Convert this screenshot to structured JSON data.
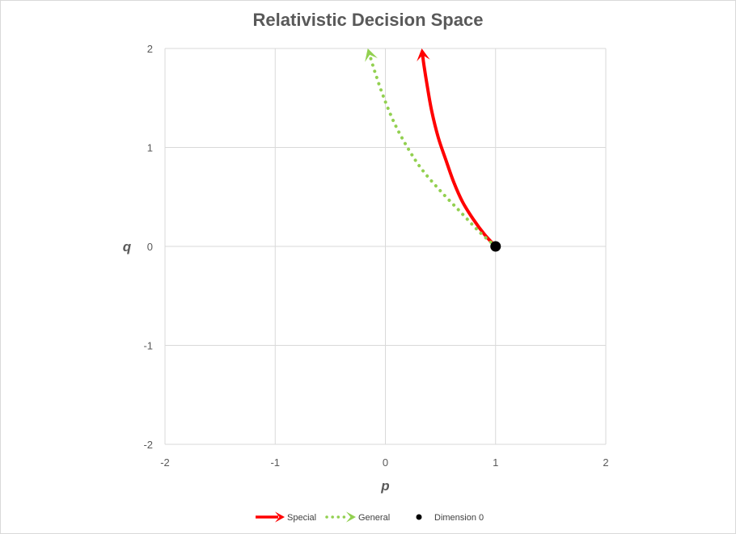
{
  "chart_data": {
    "type": "line",
    "title": "Relativistic Decision Space",
    "xlabel": "p",
    "ylabel": "q",
    "xlim": [
      -2,
      2
    ],
    "ylim": [
      -2,
      2
    ],
    "xticks": [
      -2,
      -1,
      0,
      1,
      2
    ],
    "yticks": [
      -2,
      -1,
      0,
      1,
      2
    ],
    "x_tick_labels": [
      "-2",
      "-1",
      "0",
      "1",
      "2"
    ],
    "y_tick_labels": [
      "-2",
      "-1",
      "0",
      "1",
      "2"
    ],
    "grid": true,
    "legend_position": "bottom",
    "series": [
      {
        "name": "Special",
        "kind": "line-arrow",
        "style": "solid",
        "color": "#ff0000",
        "x": [
          1.0,
          0.9,
          0.8,
          0.7,
          0.62,
          0.55,
          0.48,
          0.42,
          0.38,
          0.35,
          0.33
        ],
        "y": [
          0.0,
          0.12,
          0.27,
          0.45,
          0.65,
          0.87,
          1.1,
          1.37,
          1.62,
          1.83,
          2.0
        ]
      },
      {
        "name": "General",
        "kind": "line-arrow",
        "style": "dotted",
        "color": "#92d050",
        "x": [
          1.0,
          0.85,
          0.68,
          0.5,
          0.33,
          0.2,
          0.08,
          -0.02,
          -0.1,
          -0.16
        ],
        "y": [
          0.0,
          0.15,
          0.35,
          0.56,
          0.78,
          1.0,
          1.25,
          1.52,
          1.78,
          2.0
        ]
      },
      {
        "name": "Dimension 0",
        "kind": "point",
        "color": "#000000",
        "x": [
          1
        ],
        "y": [
          0
        ]
      }
    ]
  }
}
